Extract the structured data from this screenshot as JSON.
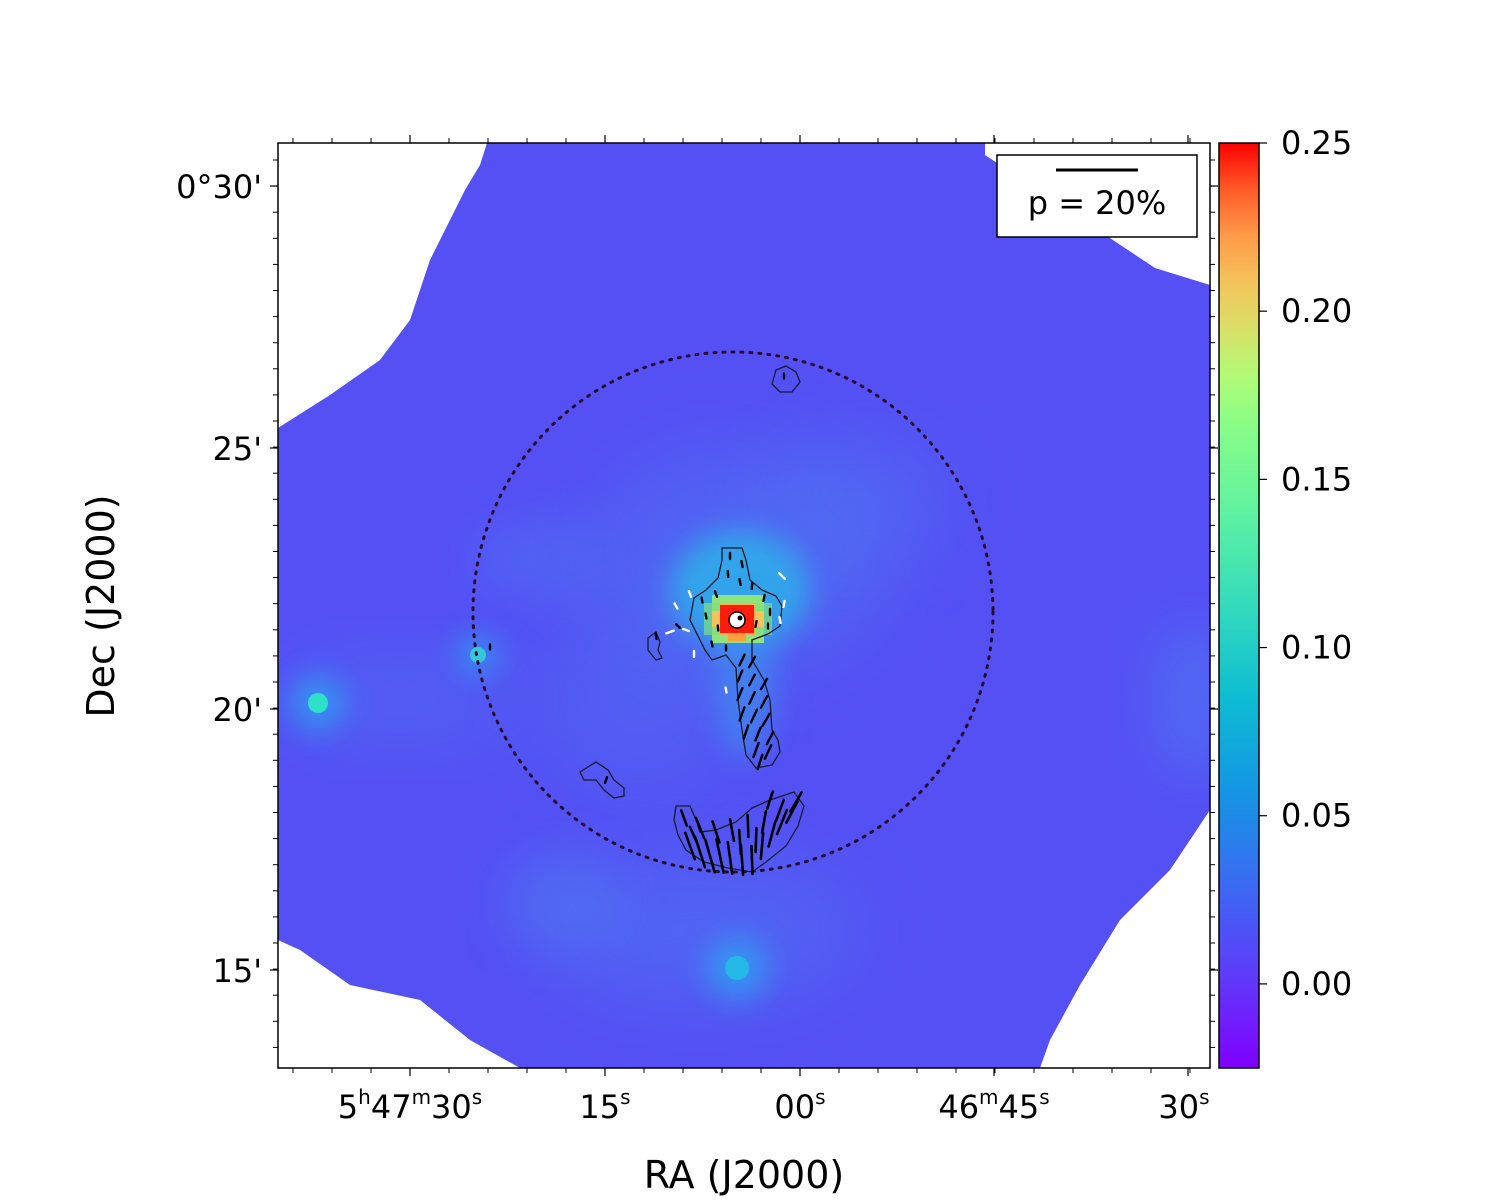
{
  "chart_data": {
    "type": "heatmap",
    "title": "",
    "xlabel": "RA (J2000)",
    "ylabel": "Dec (J2000)",
    "x_ticks": [
      {
        "main": "5",
        "sup1": "h",
        "mid": "47",
        "sup2": "m",
        "tail": "30",
        "sup3": "s"
      },
      {
        "main": "",
        "sup1": "",
        "mid": "",
        "sup2": "",
        "tail": "15",
        "sup3": "s"
      },
      {
        "main": "",
        "sup1": "",
        "mid": "",
        "sup2": "",
        "tail": "00",
        "sup3": "s"
      },
      {
        "main": "",
        "sup1": "",
        "mid": "46",
        "sup2": "m",
        "tail": "45",
        "sup3": "s"
      },
      {
        "main": "",
        "sup1": "",
        "mid": "",
        "sup2": "",
        "tail": "30",
        "sup3": "s"
      }
    ],
    "y_ticks": [
      "0°30'",
      "25'",
      "20'",
      "15'"
    ],
    "colorbar": {
      "range": [
        -0.025,
        0.25
      ],
      "ticks": [
        "0.00",
        "0.05",
        "0.10",
        "0.15",
        "0.20",
        "0.25"
      ],
      "tick_values": [
        0.0,
        0.05,
        0.1,
        0.15,
        0.2,
        0.25
      ],
      "colormap": "rainbow"
    },
    "legend": {
      "label": "p = 20%",
      "position": "top-right"
    },
    "colors": {
      "background_map": "#5450f4",
      "peak": "#ff1d0e",
      "contour": "#1a1a2e",
      "circle": "#2a0a30",
      "vectors": "#000000",
      "masked": "#ffffff"
    },
    "emission_features": [
      {
        "ra": "5h47m05s",
        "dec": "0°21.7'",
        "value": 0.25
      },
      {
        "ra": "5h47m34s",
        "dec": "0°20.1'",
        "value": 0.06
      },
      {
        "ra": "5h47m06s",
        "dec": "0°15.2'",
        "value": 0.04
      },
      {
        "ra": "5h47m22s",
        "dec": "0°21.0'",
        "value": 0.05
      }
    ]
  }
}
